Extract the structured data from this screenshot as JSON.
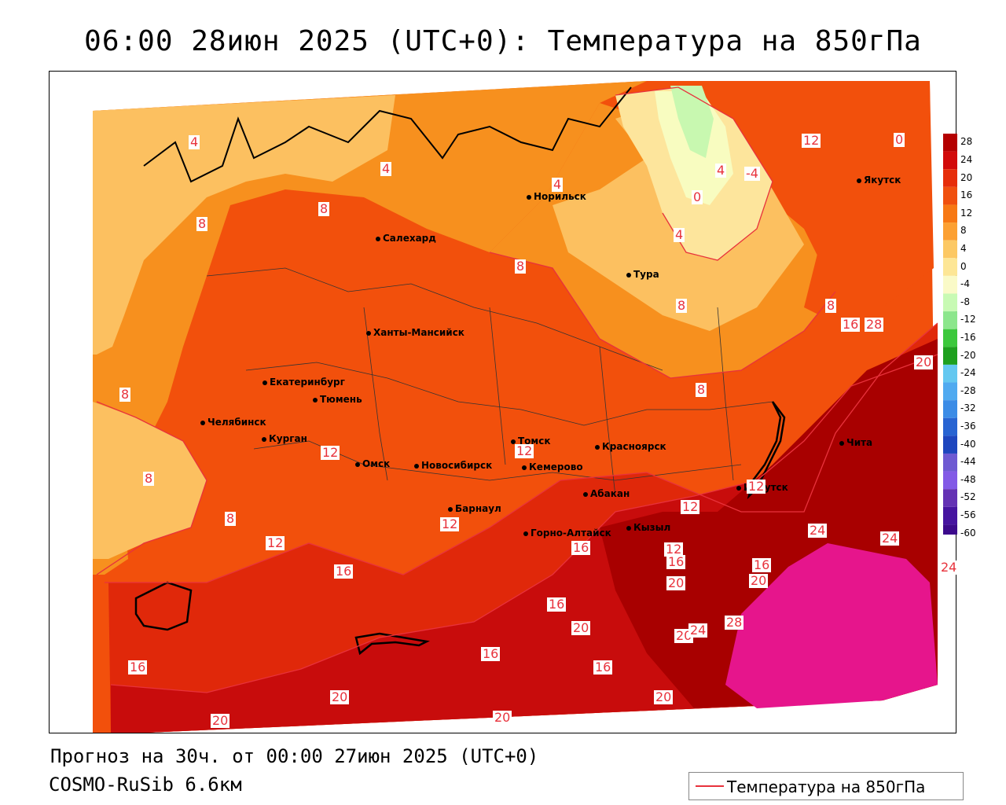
{
  "title": "06:00 28июн 2025 (UTC+0): Температура на 850гПа",
  "forecast_line": "Прогноз на 30ч. от 00:00 27июн 2025 (UTC+0)",
  "model_line": "COSMO-RuSib 6.6км",
  "legend_label": "Температура на 850гПа",
  "colors": {
    "line": "#e8323c",
    "t_28": "#e6158c",
    "t_24": "#a80000",
    "t_20": "#c80c0c",
    "t_16": "#e0280a",
    "t_12": "#f2500c",
    "t_8": "#f7901e",
    "t_4": "#fcc060",
    "t_0": "#fde59c",
    "t_m4": "#f8fcc0",
    "t_m8": "#c8f8b0",
    "t_m12": "#78e078"
  },
  "colorbar": {
    "labels": [
      "28",
      "24",
      "20",
      "16",
      "12",
      "8",
      "4",
      "0",
      "-4",
      "-8",
      "-12",
      "-16",
      "-20",
      "-24",
      "-28",
      "-32",
      "-36",
      "-40",
      "-44",
      "-48",
      "-52",
      "-56",
      "-60"
    ],
    "colors": [
      "#b40000",
      "#d20a0a",
      "#e62d0a",
      "#f0500f",
      "#f77814",
      "#fca032",
      "#fcc864",
      "#fde696",
      "#fafac8",
      "#c8fab4",
      "#8ce68c",
      "#3cc83c",
      "#1ea01e",
      "#64c8f0",
      "#50aaf0",
      "#3c8ce6",
      "#2864d2",
      "#1e46be",
      "#6e5ad2",
      "#825ae6",
      "#6432b4",
      "#4614a0",
      "#3c0a8c"
    ]
  },
  "cities": [
    {
      "name": "Якутск"
    },
    {
      "name": "Норильск"
    },
    {
      "name": "Салехард"
    },
    {
      "name": "Тура"
    },
    {
      "name": "Ханты-Мансийск"
    },
    {
      "name": "Екатеринбург"
    },
    {
      "name": "Тюмень"
    },
    {
      "name": "Челябинск"
    },
    {
      "name": "Курган"
    },
    {
      "name": "Омск"
    },
    {
      "name": "Новосибирск"
    },
    {
      "name": "Томск"
    },
    {
      "name": "Кемерово"
    },
    {
      "name": "Красноярск"
    },
    {
      "name": "Барнаул"
    },
    {
      "name": "Абакан"
    },
    {
      "name": "Горно-Алтайск"
    },
    {
      "name": "Кызыл"
    },
    {
      "name": "Иркутск"
    },
    {
      "name": "Чита"
    }
  ],
  "isolines": [
    "4",
    "4",
    "4",
    "8",
    "8",
    "12",
    "0",
    "4",
    "-4",
    "0",
    "4",
    "8",
    "8",
    "8",
    "8",
    "8",
    "8",
    "8",
    "12",
    "12",
    "12",
    "12",
    "16",
    "16",
    "16",
    "16",
    "16",
    "16",
    "16",
    "20",
    "20",
    "20",
    "20",
    "20",
    "20",
    "20",
    "20",
    "20",
    "24",
    "24",
    "24",
    "24",
    "28",
    "28",
    "16",
    "12",
    "16",
    "12",
    "12"
  ]
}
